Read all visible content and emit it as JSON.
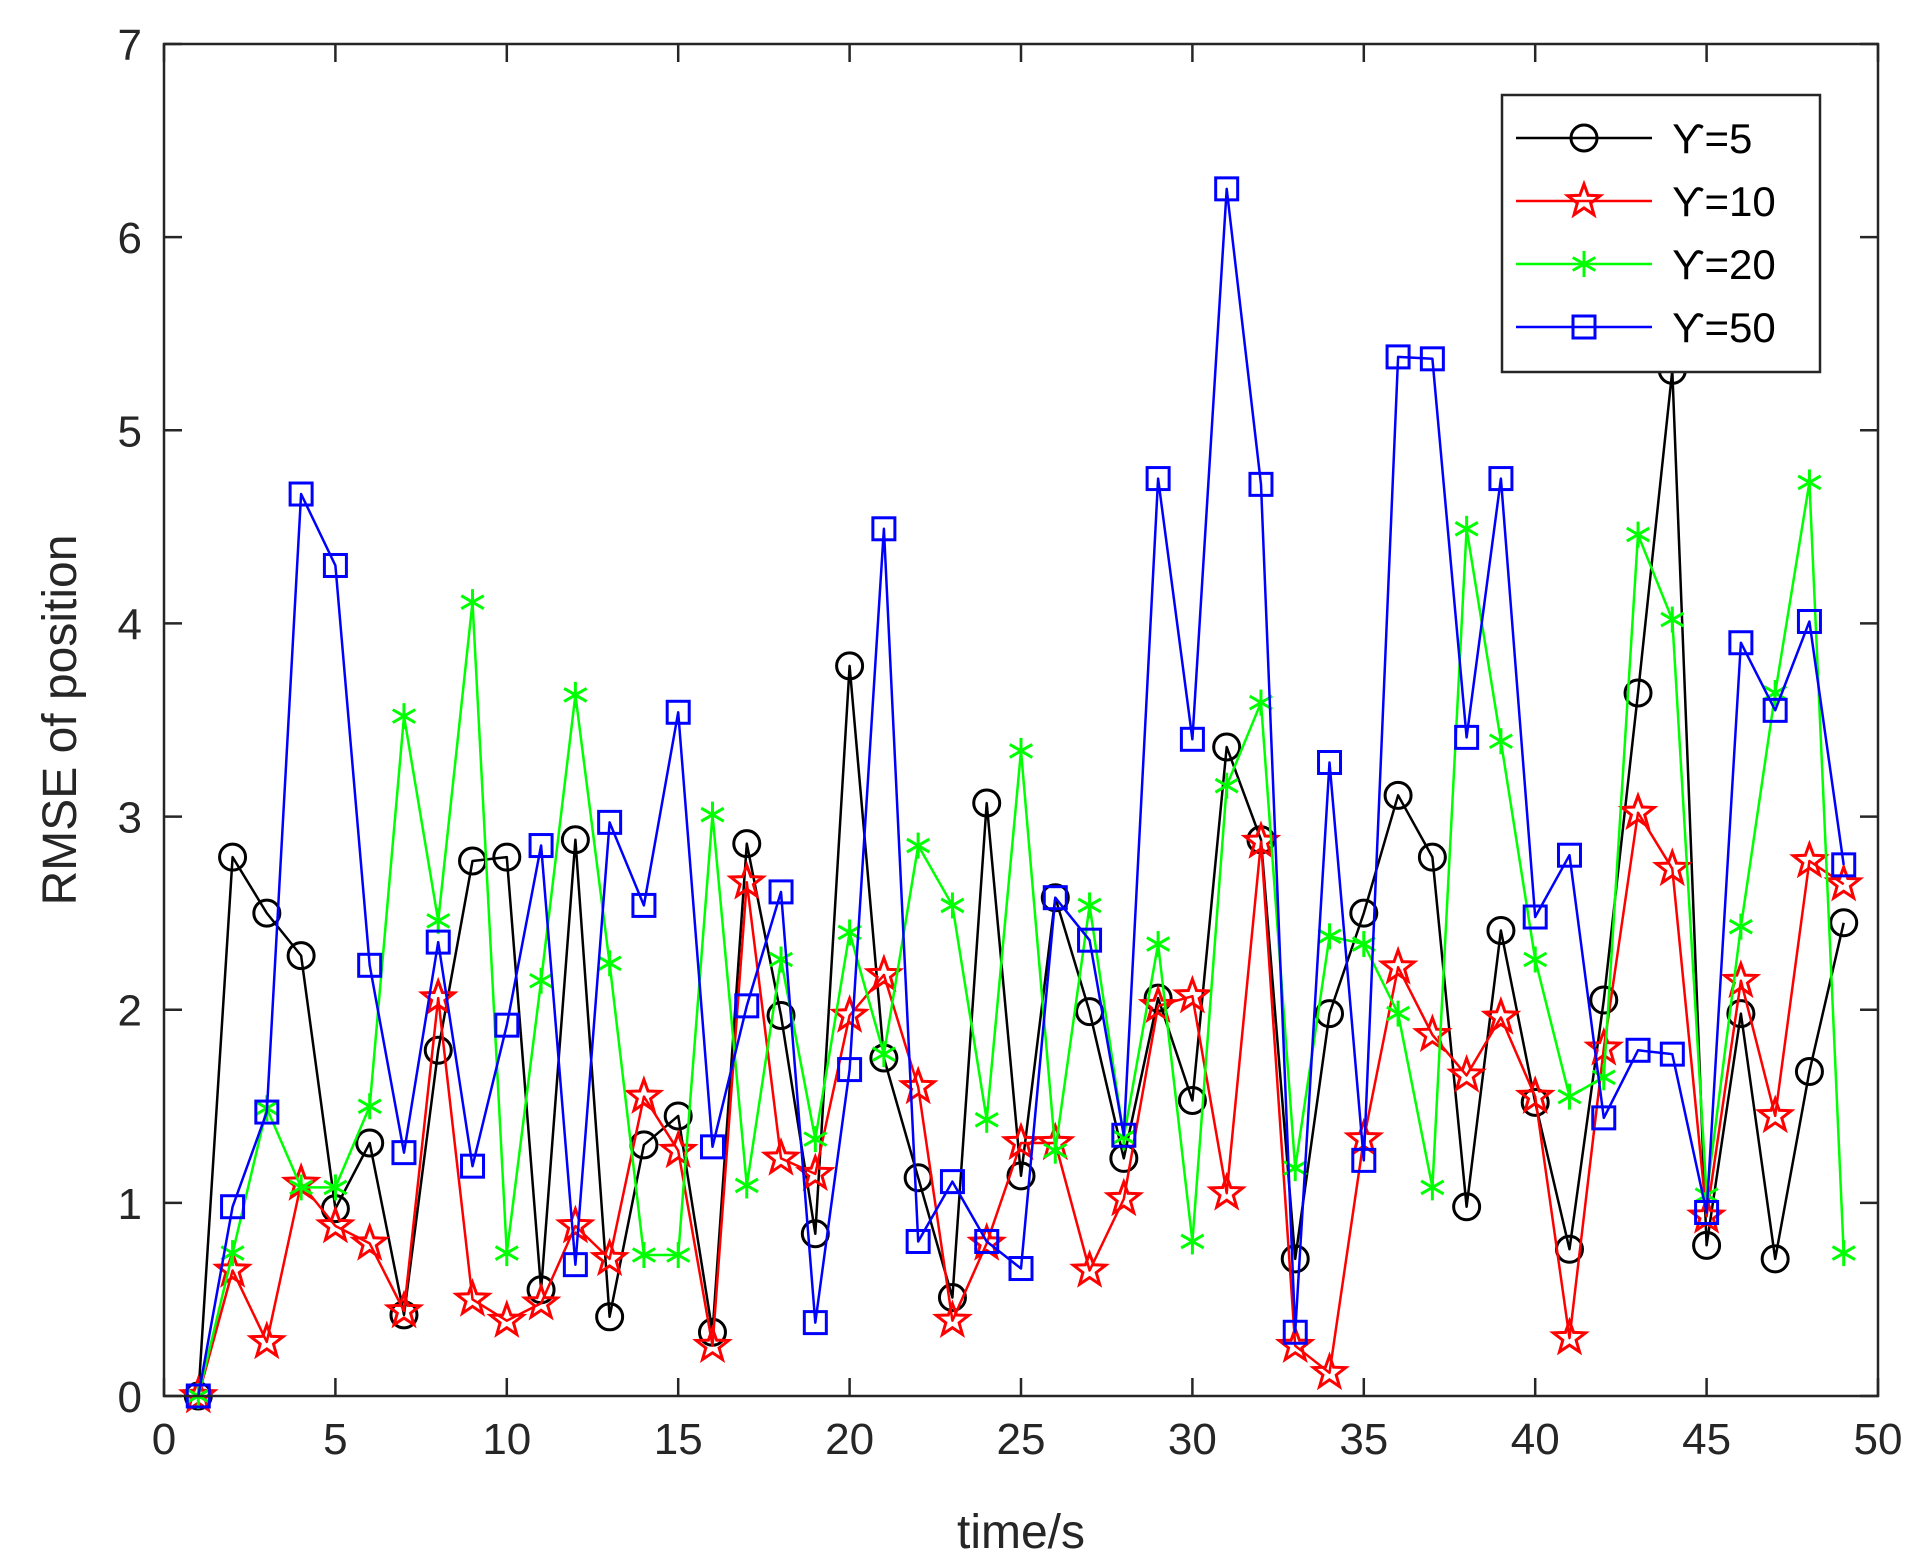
{
  "chart_data": {
    "type": "line",
    "title": "",
    "xlabel": "time/s",
    "ylabel": "RMSE of position",
    "xlim": [
      0,
      50
    ],
    "ylim": [
      0,
      7
    ],
    "xticks": [
      0,
      5,
      10,
      15,
      20,
      25,
      30,
      35,
      40,
      45,
      50
    ],
    "yticks": [
      0,
      1,
      2,
      3,
      4,
      5,
      6,
      7
    ],
    "grid": false,
    "legend_position": "top-right",
    "x": [
      1,
      2,
      3,
      4,
      5,
      6,
      7,
      8,
      9,
      10,
      11,
      12,
      13,
      14,
      15,
      16,
      17,
      18,
      19,
      20,
      21,
      22,
      23,
      24,
      25,
      26,
      27,
      28,
      29,
      30,
      31,
      32,
      33,
      34,
      35,
      36,
      37,
      38,
      39,
      40,
      41,
      42,
      43,
      44,
      45,
      46,
      47,
      48,
      49
    ],
    "series": [
      {
        "name": "ϒ=5",
        "color": "#000000",
        "marker": "circle",
        "values": [
          0.0,
          2.79,
          2.5,
          2.28,
          0.97,
          1.31,
          0.42,
          1.79,
          2.77,
          2.79,
          0.55,
          2.88,
          0.41,
          1.3,
          1.45,
          0.33,
          2.86,
          1.97,
          0.84,
          3.78,
          1.75,
          1.13,
          0.51,
          3.07,
          1.14,
          2.58,
          1.99,
          1.23,
          2.06,
          1.53,
          3.36,
          2.88,
          0.71,
          1.98,
          2.5,
          3.11,
          2.79,
          0.98,
          2.41,
          1.52,
          0.76,
          2.05,
          3.64,
          5.31,
          0.78,
          1.98,
          0.71,
          1.68,
          2.45
        ]
      },
      {
        "name": "ϒ=10",
        "color": "#ff0000",
        "marker": "star",
        "values": [
          0.0,
          0.65,
          0.28,
          1.1,
          0.88,
          0.79,
          0.44,
          2.06,
          0.5,
          0.39,
          0.48,
          0.88,
          0.71,
          1.55,
          1.27,
          0.26,
          2.66,
          1.23,
          1.15,
          1.97,
          2.18,
          1.6,
          0.39,
          0.79,
          1.31,
          1.31,
          0.65,
          1.02,
          2.02,
          2.07,
          1.05,
          2.87,
          0.26,
          0.12,
          1.33,
          2.22,
          1.87,
          1.66,
          1.96,
          1.55,
          0.3,
          1.8,
          3.02,
          2.73,
          0.93,
          2.15,
          1.45,
          2.77,
          2.65
        ]
      },
      {
        "name": "ϒ=20",
        "color": "#00ff00",
        "marker": "asterisk",
        "values": [
          0.0,
          0.74,
          1.49,
          1.08,
          1.08,
          1.5,
          3.52,
          2.46,
          4.11,
          0.74,
          2.15,
          3.63,
          2.24,
          0.73,
          0.73,
          3.01,
          1.09,
          2.26,
          1.33,
          2.4,
          1.77,
          2.85,
          2.54,
          1.43,
          3.34,
          1.27,
          2.54,
          1.34,
          2.34,
          0.8,
          3.16,
          3.59,
          1.18,
          2.38,
          2.34,
          1.98,
          1.08,
          4.49,
          3.39,
          2.26,
          1.55,
          1.65,
          4.46,
          4.02,
          1.04,
          2.43,
          3.64,
          4.73,
          0.74
        ]
      },
      {
        "name": "ϒ=50",
        "color": "#0000ff",
        "marker": "square",
        "values": [
          0.0,
          0.98,
          1.47,
          4.67,
          4.3,
          2.23,
          1.26,
          2.35,
          1.19,
          1.92,
          2.85,
          0.68,
          2.97,
          2.54,
          3.54,
          1.29,
          2.02,
          2.61,
          0.38,
          1.69,
          4.49,
          0.8,
          1.11,
          0.8,
          0.66,
          2.58,
          2.36,
          1.35,
          4.75,
          3.4,
          6.25,
          4.72,
          0.33,
          3.28,
          1.22,
          5.38,
          5.37,
          3.41,
          4.75,
          2.48,
          2.8,
          1.44,
          1.79,
          1.77,
          0.95,
          3.9,
          3.55,
          4.01,
          2.75
        ]
      }
    ]
  }
}
